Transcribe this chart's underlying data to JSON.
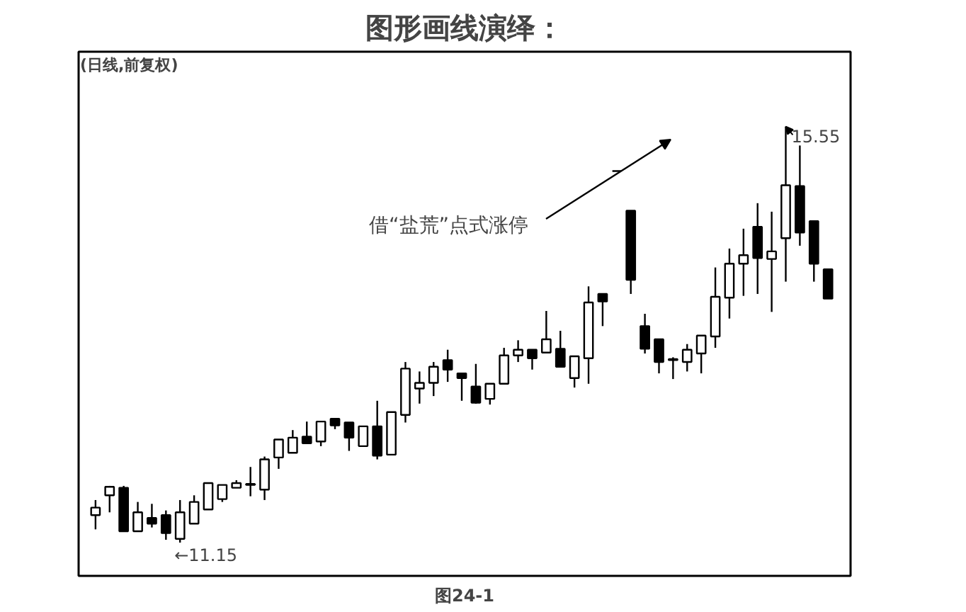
{
  "chart_data": {
    "type": "candlestick",
    "title": "图形画线演绎：",
    "subtitle": "(日线,前复权)",
    "color": "#000000",
    "annotations": [
      "←11.15",
      "15.55",
      "借“盐荒”点式涨停",
      "图24-1"
    ],
    "categories": [
      null,
      null,
      null,
      null,
      null,
      null,
      null,
      null,
      null,
      null,
      null,
      null,
      null,
      null,
      null,
      null,
      null,
      null,
      null,
      null,
      null,
      null,
      null,
      null,
      null,
      null,
      null,
      null,
      null,
      null,
      null,
      null,
      null,
      null,
      null,
      null,
      null,
      null,
      null,
      null,
      null,
      null,
      null,
      null,
      null,
      null,
      null,
      null,
      null,
      null,
      null,
      null,
      null
    ],
    "ohlc": [
      [
        11.44,
        11.6,
        11.29,
        11.52
      ],
      [
        11.65,
        11.75,
        11.47,
        11.74
      ],
      [
        11.73,
        11.75,
        11.27,
        11.27
      ],
      [
        11.27,
        11.58,
        11.27,
        11.47
      ],
      [
        11.41,
        11.56,
        11.31,
        11.35
      ],
      [
        11.44,
        11.49,
        11.18,
        11.25
      ],
      [
        11.19,
        11.6,
        11.15,
        11.47
      ],
      [
        11.35,
        11.65,
        11.35,
        11.58
      ],
      [
        11.5,
        11.78,
        11.5,
        11.78
      ],
      [
        11.61,
        11.76,
        11.58,
        11.76
      ],
      [
        11.73,
        11.81,
        11.73,
        11.78
      ],
      [
        11.76,
        11.95,
        11.64,
        11.77
      ],
      [
        11.71,
        12.06,
        11.6,
        12.03
      ],
      [
        12.05,
        12.24,
        11.93,
        12.24
      ],
      [
        12.1,
        12.34,
        12.1,
        12.26
      ],
      [
        12.27,
        12.43,
        12.2,
        12.2
      ],
      [
        12.22,
        12.43,
        12.17,
        12.43
      ],
      [
        12.46,
        12.46,
        12.35,
        12.39
      ],
      [
        12.42,
        12.42,
        12.12,
        12.26
      ],
      [
        12.17,
        12.38,
        12.17,
        12.38
      ],
      [
        12.38,
        12.65,
        12.03,
        12.07
      ],
      [
        12.08,
        12.53,
        12.08,
        12.53
      ],
      [
        12.5,
        13.06,
        12.42,
        12.99
      ],
      [
        12.78,
        12.96,
        12.62,
        12.84
      ],
      [
        12.84,
        13.06,
        12.7,
        13.01
      ],
      [
        13.08,
        13.19,
        12.85,
        12.98
      ],
      [
        12.94,
        12.94,
        12.65,
        12.89
      ],
      [
        12.8,
        13.04,
        12.62,
        12.63
      ],
      [
        12.67,
        12.83,
        12.61,
        12.83
      ],
      [
        12.83,
        13.21,
        12.83,
        13.13
      ],
      [
        13.13,
        13.29,
        13.06,
        13.19
      ],
      [
        13.19,
        13.19,
        12.98,
        13.1
      ],
      [
        13.16,
        13.6,
        13.16,
        13.3
      ],
      [
        13.2,
        13.39,
        13.01,
        13.01
      ],
      [
        12.89,
        13.12,
        12.79,
        13.12
      ],
      [
        13.1,
        13.86,
        12.83,
        13.69
      ],
      [
        13.78,
        13.78,
        13.44,
        13.7
      ],
      [
        15.08,
        15.08,
        15.08,
        15.08
      ],
      [
        14.66,
        14.66,
        13.78,
        13.93
      ],
      [
        13.44,
        13.57,
        13.15,
        13.2
      ],
      [
        13.3,
        13.3,
        12.94,
        13.06
      ],
      [
        13.09,
        13.11,
        12.88,
        13.08
      ],
      [
        13.06,
        13.25,
        12.96,
        13.19
      ],
      [
        13.15,
        13.34,
        12.94,
        13.34
      ],
      [
        13.33,
        14.06,
        13.21,
        13.75
      ],
      [
        13.74,
        14.26,
        13.52,
        14.1
      ],
      [
        14.1,
        14.47,
        13.76,
        14.19
      ],
      [
        14.49,
        14.74,
        13.78,
        14.16
      ],
      [
        14.15,
        14.65,
        13.59,
        14.23
      ],
      [
        14.37,
        15.55,
        13.91,
        14.93
      ],
      [
        14.92,
        15.35,
        14.29,
        14.43
      ],
      [
        14.55,
        14.55,
        13.91,
        14.1
      ],
      [
        14.04,
        14.04,
        13.73,
        13.73
      ]
    ]
  }
}
